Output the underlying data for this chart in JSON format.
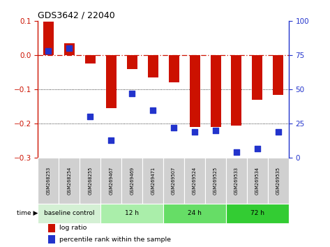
{
  "title": "GDS3642 / 22040",
  "samples": [
    "GSM268253",
    "GSM268254",
    "GSM268255",
    "GSM269467",
    "GSM269469",
    "GSM269471",
    "GSM269507",
    "GSM269524",
    "GSM269525",
    "GSM269533",
    "GSM269534",
    "GSM269535"
  ],
  "log_ratio": [
    0.098,
    0.035,
    -0.025,
    -0.155,
    -0.04,
    -0.065,
    -0.08,
    -0.21,
    -0.21,
    -0.205,
    -0.13,
    -0.115
  ],
  "percentile_rank": [
    78,
    80,
    30,
    13,
    47,
    35,
    22,
    19,
    20,
    4,
    7,
    19
  ],
  "ylim_left": [
    -0.3,
    0.1
  ],
  "ylim_right": [
    0,
    100
  ],
  "yticks_left": [
    -0.3,
    -0.2,
    -0.1,
    0.0,
    0.1
  ],
  "yticks_right": [
    0,
    25,
    50,
    75,
    100
  ],
  "bar_color": "#cc1100",
  "dot_color": "#2233cc",
  "dashed_line_color": "#cc1100",
  "groups": [
    {
      "label": "baseline control",
      "start": 0,
      "end": 3,
      "color": "#d4f0d4"
    },
    {
      "label": "12 h",
      "start": 3,
      "end": 6,
      "color": "#aaeeaa"
    },
    {
      "label": "24 h",
      "start": 6,
      "end": 9,
      "color": "#66dd66"
    },
    {
      "label": "72 h",
      "start": 9,
      "end": 12,
      "color": "#33cc33"
    }
  ],
  "bar_width": 0.5,
  "dot_size": 35,
  "legend_log_ratio": "log ratio",
  "legend_percentile": "percentile rank within the sample"
}
